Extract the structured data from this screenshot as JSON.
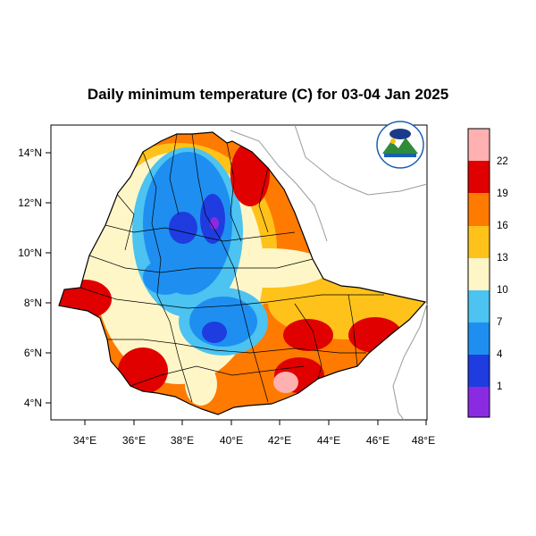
{
  "title": "Daily minimum temperature (C) for 03-04 Jan 2025",
  "x_ticks": [
    "34°E",
    "36°E",
    "38°E",
    "40°E",
    "42°E",
    "44°E",
    "46°E",
    "48°E"
  ],
  "y_ticks": [
    "14°N",
    "12°N",
    "10°N",
    "8°N",
    "6°N",
    "4°N"
  ],
  "colorbar": {
    "levels": [
      "1",
      "4",
      "7",
      "10",
      "13",
      "16",
      "19",
      "22"
    ],
    "colors": [
      "#8a2be2",
      "#1e3ce0",
      "#1e8ff0",
      "#4cc3f0",
      "#fff6c8",
      "#ffc21a",
      "#ff7a00",
      "#e00000",
      "#ffb0b0"
    ]
  },
  "logo_icon": "ethiopian-meteorology-institute-logo-icon"
}
